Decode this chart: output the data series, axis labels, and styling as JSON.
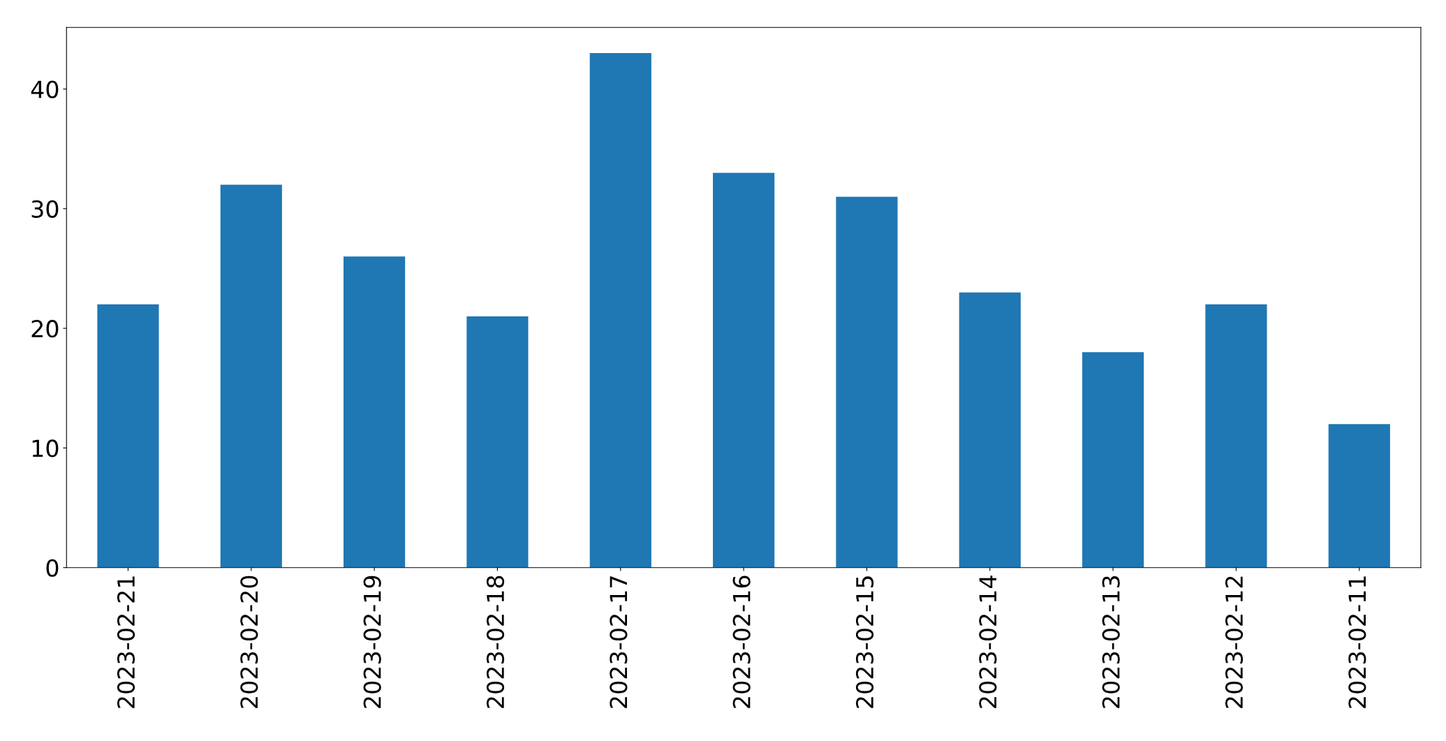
{
  "chart_data": {
    "type": "bar",
    "categories": [
      "2023-02-21",
      "2023-02-20",
      "2023-02-19",
      "2023-02-18",
      "2023-02-17",
      "2023-02-16",
      "2023-02-15",
      "2023-02-14",
      "2023-02-13",
      "2023-02-12",
      "2023-02-11"
    ],
    "values": [
      22,
      32,
      26,
      21,
      43,
      33,
      31,
      23,
      18,
      22,
      12
    ],
    "color": "#1f77b4",
    "ylim": [
      0,
      45.15
    ],
    "yticks": [
      0,
      10,
      20,
      30,
      40
    ],
    "grid": false,
    "legend": false
  }
}
